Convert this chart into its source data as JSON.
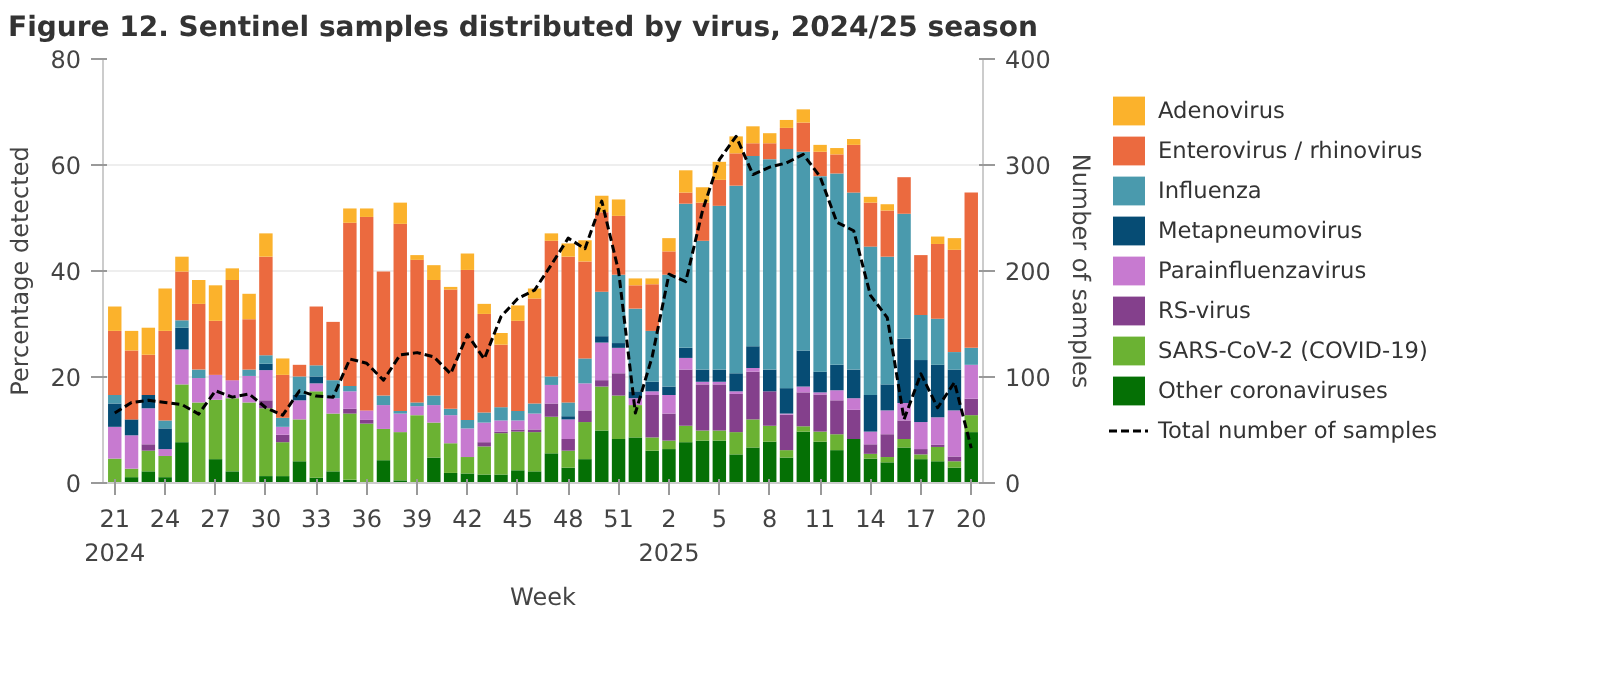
{
  "chart_data": {
    "type": "bar",
    "title": "Figure 12. Sentinel samples distributed by virus, 2024/25 season",
    "xlabel": "Week",
    "ylabel": "Percentage detected",
    "y2label": "Number of samples",
    "categories": [
      "21\n2024",
      null,
      null,
      "24",
      null,
      null,
      "27",
      null,
      null,
      "30",
      null,
      null,
      "33",
      null,
      null,
      "36",
      null,
      null,
      "39",
      null,
      null,
      "42",
      null,
      null,
      "45",
      null,
      null,
      "48",
      null,
      null,
      "51",
      null,
      null,
      "2\n2025",
      null,
      null,
      "5",
      null,
      null,
      "8",
      null,
      null,
      "11",
      null,
      null,
      "14",
      null,
      null,
      "17",
      null,
      null,
      "20"
    ],
    "stacked": true,
    "ylim": [
      0,
      80
    ],
    "yticks": [
      0,
      20,
      40,
      60,
      80
    ],
    "y2lim": [
      0,
      400
    ],
    "y2ticks": [
      0,
      100,
      200,
      300,
      400
    ],
    "grid": "y",
    "legend": "right",
    "line_style": "dashed",
    "series": [
      {
        "name": "Other coronaviruses",
        "color": "#057005",
        "values": [
          0,
          1.1,
          2.2,
          1.1,
          7.7,
          0,
          4.5,
          2.2,
          0,
          1.3,
          1.3,
          4.1,
          1.0,
          2.2,
          0.6,
          0,
          4.3,
          0.5,
          0,
          4.8,
          1.9,
          1.8,
          1.6,
          1.6,
          2.4,
          2.2,
          5.6,
          2.9,
          4.5,
          9.9,
          8.3,
          8.6,
          6.1,
          6.4,
          7.7,
          8.0,
          8.0,
          5.4,
          6.7,
          7.8,
          4.8,
          9.7,
          7.8,
          6.2,
          8.3,
          4.6,
          3.9,
          6.7,
          4.5,
          4.1,
          2.9,
          9.6
        ]
      },
      {
        "name": "SARS-CoV-2 (COVID-19)",
        "color": "#6bb233",
        "values": [
          4.6,
          1.6,
          3.9,
          4.0,
          10.9,
          15.2,
          11.2,
          13.8,
          15.2,
          12.8,
          6.4,
          7.9,
          16.3,
          10.9,
          12.5,
          11.2,
          5.9,
          9.1,
          12.8,
          6.6,
          5.6,
          3.1,
          5.3,
          7.8,
          7.3,
          7.4,
          6.9,
          3.2,
          7.0,
          8.3,
          8.2,
          6.1,
          2.5,
          1.6,
          3.1,
          1.9,
          1.9,
          4.2,
          5.3,
          3.0,
          1.4,
          1.0,
          1.9,
          3.0,
          0,
          0.9,
          1.0,
          1.6,
          0.9,
          2.7,
          1.2,
          3.2
        ]
      },
      {
        "name": "RS-virus",
        "color": "#84408c",
        "values": [
          0,
          0,
          1.2,
          0,
          0,
          0,
          0,
          0,
          0,
          1.5,
          1.4,
          0,
          0,
          0,
          0.9,
          0.7,
          0,
          0,
          0,
          0,
          0,
          0,
          0.8,
          0.3,
          0.4,
          0.5,
          2.5,
          2.2,
          2.2,
          1.2,
          4.2,
          0,
          8.0,
          5.1,
          10.6,
          8.7,
          8.7,
          7.2,
          9.0,
          6.5,
          6.7,
          6.4,
          7.0,
          6.4,
          5.5,
          1.8,
          4.3,
          3.5,
          1.0,
          0.4,
          0.9,
          3.1
        ]
      },
      {
        "name": "Parainfluenzavirus",
        "color": "#c77ad0",
        "values": [
          6.0,
          6.3,
          6.8,
          1.3,
          6.6,
          4.6,
          4.7,
          3.4,
          5.0,
          5.7,
          1.5,
          3.6,
          1.5,
          2.9,
          3.3,
          1.8,
          4.5,
          3.5,
          1.7,
          3.3,
          5.3,
          5.4,
          3.7,
          2.1,
          1.7,
          3.0,
          3.5,
          3.7,
          5.1,
          7.1,
          4.8,
          1.3,
          0.7,
          3.5,
          2.2,
          0.5,
          0.5,
          0.5,
          0.7,
          0,
          0.2,
          1.1,
          0.4,
          1.9,
          2.2,
          2.4,
          4.5,
          3.3,
          5.1,
          5.2,
          8.7,
          6.4
        ]
      },
      {
        "name": "Metapneumovirus",
        "color": "#064c74",
        "values": [
          4.4,
          3.0,
          2.5,
          3.9,
          4.1,
          0,
          0,
          0,
          0,
          1.2,
          0,
          1.0,
          1.3,
          0,
          0,
          0,
          0,
          0,
          0,
          0,
          0,
          0,
          0,
          0,
          0,
          0,
          0,
          0.6,
          0,
          1.2,
          0.9,
          1.3,
          1.8,
          1.6,
          1.9,
          2.3,
          2.3,
          3.4,
          4.1,
          4.1,
          4.8,
          6.8,
          3.9,
          4.8,
          5.4,
          6.9,
          4.9,
          12.1,
          11.7,
          9.9,
          7.7,
          0
        ]
      },
      {
        "name": "Influenza",
        "color": "#4a9aad",
        "values": [
          1.6,
          0,
          0,
          1.5,
          1.4,
          1.6,
          0,
          0,
          1.2,
          1.6,
          1.7,
          3.5,
          2.1,
          3.4,
          1.0,
          0,
          1.8,
          0.5,
          0.7,
          1.8,
          1.2,
          1.6,
          1.9,
          2.5,
          1.8,
          1.9,
          1.6,
          2.6,
          4.7,
          8.4,
          12.9,
          15.6,
          9.6,
          21.1,
          27.2,
          24.3,
          30.9,
          35.4,
          35.9,
          39.7,
          45.1,
          37.5,
          36.9,
          36.1,
          33.4,
          28.0,
          24.1,
          23.6,
          8.5,
          8.7,
          3.3,
          3.2
        ]
      },
      {
        "name": "Enterovirus / rhinovirus",
        "color": "#eb6a3f",
        "values": [
          12.1,
          13.0,
          7.6,
          16.9,
          9.2,
          12.4,
          10.2,
          18.9,
          9.5,
          18.6,
          8.1,
          2.2,
          11.1,
          11.0,
          30.8,
          36.5,
          23.4,
          35.3,
          26.9,
          21.8,
          22.5,
          28.3,
          18.6,
          11.8,
          17.0,
          19.8,
          25.6,
          27.5,
          18.3,
          15.0,
          11.1,
          4.4,
          8.8,
          4.4,
          2.1,
          7.2,
          4.9,
          6.1,
          2.4,
          3.0,
          4.0,
          5.5,
          4.6,
          3.6,
          9.0,
          8.3,
          8.7,
          6.9,
          11.3,
          14.1,
          19.3,
          29.3
        ]
      },
      {
        "name": "Adenovirus",
        "color": "#fbb22c",
        "values": [
          4.6,
          3.7,
          5.1,
          8.0,
          2.8,
          4.5,
          6.7,
          2.2,
          4.8,
          4.4,
          3.1,
          0,
          0,
          0,
          2.7,
          1.6,
          0,
          4.0,
          0.9,
          2.8,
          0.5,
          3.1,
          1.9,
          2.2,
          2.9,
          1.9,
          1.4,
          2.5,
          4.0,
          3.1,
          3.1,
          1.3,
          1.1,
          2.5,
          4.2,
          2.9,
          3.4,
          3.2,
          3.2,
          1.9,
          1.5,
          2.5,
          1.3,
          1.2,
          1.1,
          1.1,
          1.2,
          0,
          0,
          1.4,
          2.2,
          0
        ]
      },
      {
        "name": "Total number of samples",
        "type": "line",
        "axis": "y2",
        "color": "#000000",
        "values": [
          66,
          76,
          78,
          76,
          74,
          65,
          87,
          81,
          84,
          71,
          64,
          87,
          82,
          81,
          117,
          113,
          97,
          121,
          123,
          119,
          103,
          140,
          117,
          157,
          174,
          182,
          206,
          231,
          221,
          266,
          200,
          66,
          119,
          197,
          190,
          257,
          305,
          327,
          291,
          298,
          302,
          310,
          289,
          246,
          238,
          177,
          156,
          60,
          103,
          71,
          95,
          33
        ]
      }
    ]
  }
}
